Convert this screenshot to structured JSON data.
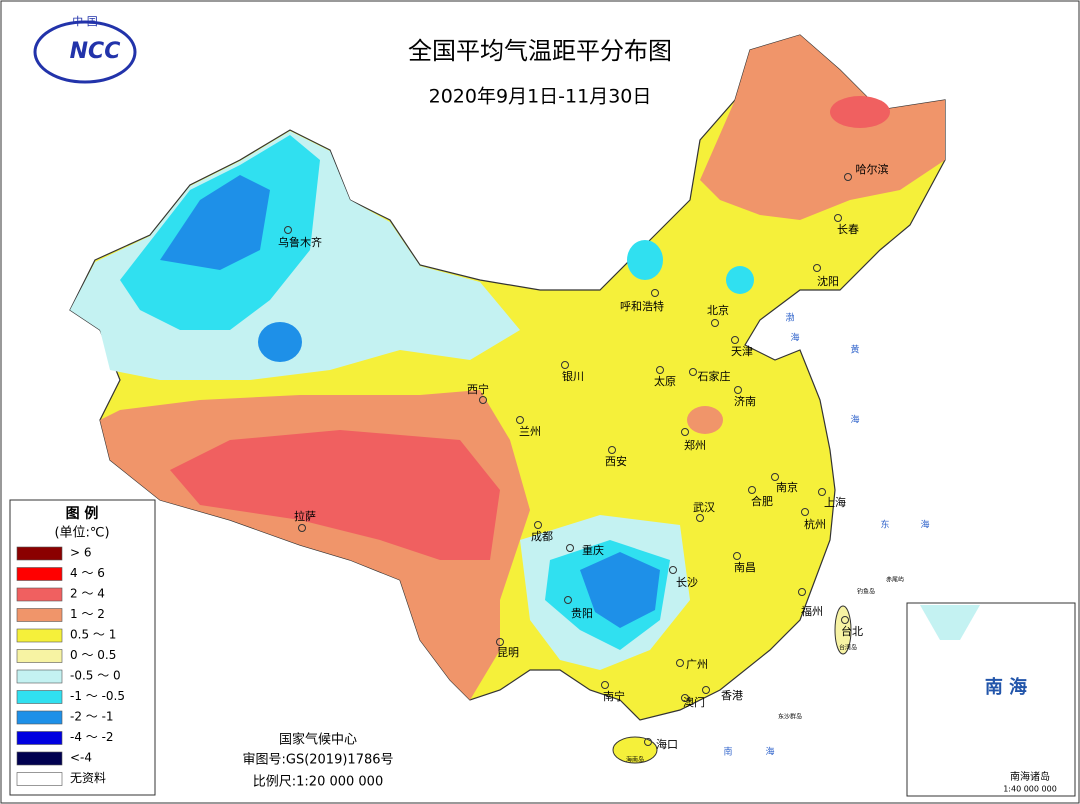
{
  "header": {
    "title": "全国平均气温距平分布图",
    "subtitle": "2020年9月1日-11月30日",
    "logo_top": "中 国",
    "logo_text": "NCC"
  },
  "legend": {
    "title": "图 例",
    "unit": "(单位:℃)",
    "items": [
      {
        "label": "> 6",
        "color": "#8b0000"
      },
      {
        "label": "4 ～ 6",
        "color": "#ff0000"
      },
      {
        "label": "2 ～ 4",
        "color": "#f06060"
      },
      {
        "label": "1 ～ 2",
        "color": "#f0956a"
      },
      {
        "label": "0.5 ～ 1",
        "color": "#f5f03a"
      },
      {
        "label": "0 ～ 0.5",
        "color": "#f7f3a3"
      },
      {
        "label": "-0.5 ～ 0",
        "color": "#c4f2f2"
      },
      {
        "label": "-1 ～ -0.5",
        "color": "#30e0f0"
      },
      {
        "label": "-2 ～ -1",
        "color": "#1e90e8"
      },
      {
        "label": "-4 ～ -2",
        "color": "#0000e0"
      },
      {
        "label": "<-4",
        "color": "#000050"
      },
      {
        "label": "无资料",
        "color": "#ffffff"
      }
    ]
  },
  "cities": [
    "乌鲁木齐",
    "哈尔滨",
    "长春",
    "沈阳",
    "呼和浩特",
    "北京",
    "天津",
    "石家庄",
    "太原",
    "济南",
    "银川",
    "西宁",
    "兰州",
    "西安",
    "郑州",
    "南京",
    "合肥",
    "上海",
    "杭州",
    "武汉",
    "成都",
    "重庆",
    "拉萨",
    "长沙",
    "南昌",
    "贵阳",
    "福州",
    "台北",
    "昆明",
    "广州",
    "南宁",
    "香港",
    "澳门",
    "海口"
  ],
  "seas": [
    "渤",
    "海",
    "黄",
    "海",
    "东",
    "海",
    "南",
    "海"
  ],
  "islands": [
    "台湾岛",
    "海南岛",
    "钓鱼岛",
    "赤尾屿",
    "东沙群岛"
  ],
  "footer": [
    "国家气候中心",
    "审图号:GS(2019)1786号",
    "比例尺:1:20 000 000"
  ],
  "inset": {
    "title": "南 海",
    "label": "南海诸岛",
    "scale": "1:40 000 000"
  }
}
